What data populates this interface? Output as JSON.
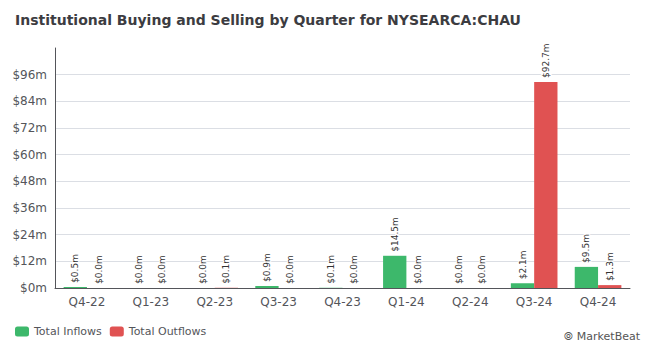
{
  "chart_data": {
    "type": "bar",
    "title": "Institutional Buying and Selling by Quarter for NYSEARCA:CHAU",
    "categories": [
      "Q4-22",
      "Q1-23",
      "Q2-23",
      "Q3-23",
      "Q4-23",
      "Q1-24",
      "Q2-24",
      "Q3-24",
      "Q4-24"
    ],
    "series": [
      {
        "name": "Total Inflows",
        "color": "#3db86b",
        "values": [
          0.5,
          0.0,
          0.0,
          0.9,
          0.1,
          14.5,
          0.0,
          2.1,
          9.5
        ],
        "value_labels": [
          "$0.5m",
          "$0.0m",
          "$0.0m",
          "$0.9m",
          "$0.1m",
          "$14.5m",
          "$0.0m",
          "$2.1m",
          "$9.5m"
        ]
      },
      {
        "name": "Total Outflows",
        "color": "#e05252",
        "values": [
          0.0,
          0.0,
          0.1,
          0.0,
          0.0,
          0.0,
          0.0,
          92.7,
          1.3
        ],
        "value_labels": [
          "$0.0m",
          "$0.0m",
          "$0.1m",
          "$0.0m",
          "$0.0m",
          "$0.0m",
          "$0.0m",
          "$92.7m",
          "$1.3m"
        ]
      }
    ],
    "ylim": [
      0,
      108
    ],
    "yticks": [
      {
        "value": 0,
        "label": "$0m"
      },
      {
        "value": 12,
        "label": "$12m"
      },
      {
        "value": 24,
        "label": "$24m"
      },
      {
        "value": 36,
        "label": "$36m"
      },
      {
        "value": 48,
        "label": "$48m"
      },
      {
        "value": 60,
        "label": "$60m"
      },
      {
        "value": 72,
        "label": "$72m"
      },
      {
        "value": 84,
        "label": "$84m"
      },
      {
        "value": 96,
        "label": "$96m"
      }
    ],
    "grid": true,
    "data_labels": true,
    "legend": "lower left",
    "annotations": [
      "⦾ MarketBeat"
    ]
  }
}
